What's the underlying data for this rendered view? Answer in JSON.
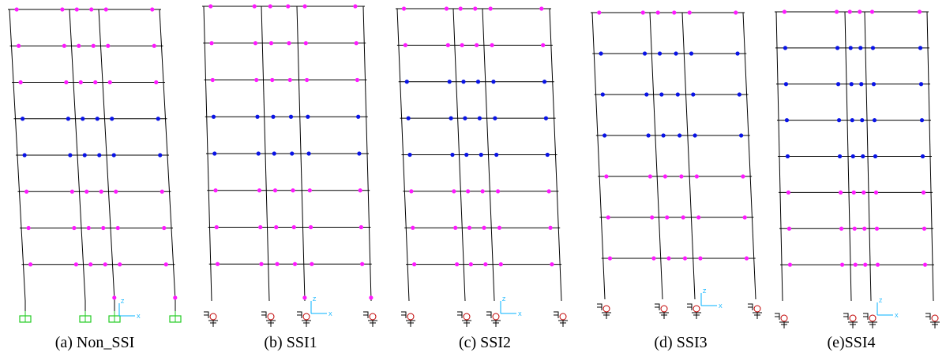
{
  "figure": {
    "colors": {
      "frame": "#000000",
      "hinge_primary": "#ff1aff",
      "hinge_secondary": "#0a14e6",
      "fixed_support": "#22cc22",
      "spring_support": "#c00000",
      "axis": "#00b0ff"
    },
    "axis_labels": {
      "z": "Z",
      "x": "X"
    },
    "panels": [
      {
        "caption": "(a) Non_SSI",
        "support_type": "fixed",
        "blue_floors": [
          4,
          5
        ],
        "column_hinge_at_base": true
      },
      {
        "caption": "(b) SSI1",
        "support_type": "spring",
        "blue_floors": [
          4,
          5
        ],
        "column_hinge_at_base": true
      },
      {
        "caption": "(c) SSI2",
        "support_type": "spring",
        "blue_floors": [
          4,
          5,
          6
        ],
        "column_hinge_at_base": false
      },
      {
        "caption": "(d) SSI3",
        "support_type": "spring",
        "blue_floors": [
          4,
          5,
          6
        ],
        "column_hinge_at_base": false
      },
      {
        "caption": "(e)SSI4",
        "support_type": "spring",
        "blue_floors": [
          4,
          5,
          6,
          7
        ],
        "column_hinge_at_base": false
      }
    ]
  }
}
